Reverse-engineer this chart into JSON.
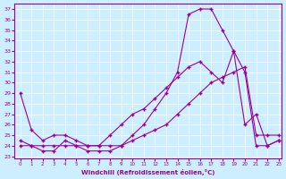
{
  "xlabel": "Windchill (Refroidissement éolien,°C)",
  "bg_color": "#cceeff",
  "line_color": "#990099",
  "xlim_min": -0.5,
  "xlim_max": 23.3,
  "ylim_min": 22.8,
  "ylim_max": 37.5,
  "yticks": [
    23,
    24,
    25,
    26,
    27,
    28,
    29,
    30,
    31,
    32,
    33,
    34,
    35,
    36,
    37
  ],
  "xticks": [
    0,
    1,
    2,
    3,
    4,
    5,
    6,
    7,
    8,
    9,
    10,
    11,
    12,
    13,
    14,
    15,
    16,
    17,
    18,
    19,
    20,
    21,
    22,
    23
  ],
  "series1_x": [
    0,
    1,
    2,
    3,
    4,
    5,
    6,
    7,
    8,
    9,
    10,
    11,
    12,
    13,
    14,
    15,
    16,
    17,
    18,
    19,
    20,
    21,
    22,
    23
  ],
  "series1_y": [
    29,
    25.5,
    24.5,
    25,
    25,
    24.5,
    24,
    24,
    25,
    26,
    27,
    27.5,
    28.5,
    29.5,
    30.5,
    31.5,
    32,
    31,
    30,
    33,
    26,
    27,
    24,
    24.5
  ],
  "series2_x": [
    0,
    1,
    2,
    3,
    4,
    5,
    6,
    7,
    8,
    9,
    10,
    11,
    12,
    13,
    14,
    15,
    16,
    17,
    18,
    19,
    20,
    21,
    22,
    23
  ],
  "series2_y": [
    24.5,
    24,
    23.5,
    23.5,
    24.5,
    24,
    23.5,
    23.5,
    23.5,
    24,
    24.5,
    25,
    25.5,
    26,
    27,
    28,
    29,
    30,
    30.5,
    31,
    31.5,
    25,
    25,
    25
  ],
  "series3_x": [
    0,
    1,
    2,
    3,
    4,
    5,
    6,
    7,
    8,
    9,
    10,
    11,
    12,
    13,
    14,
    15,
    16,
    17,
    18,
    19,
    20,
    21,
    22,
    23
  ],
  "series3_y": [
    24,
    24,
    24,
    24,
    24,
    24,
    24,
    24,
    24,
    24,
    25,
    26,
    27.5,
    29,
    31,
    36.5,
    37,
    37,
    35,
    33,
    31,
    24,
    24,
    24.5
  ]
}
